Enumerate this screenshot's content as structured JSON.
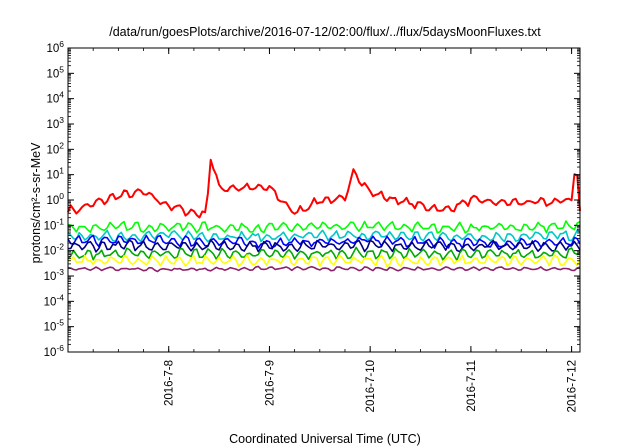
{
  "chart_data": {
    "type": "line",
    "title": "/data/run/goesPlots/archive/2016-07-12/02:00/flux/../flux/5daysMoonFluxes.txt",
    "xlabel": "Coordinated Universal Time (UTC)",
    "ylabel": "protons/cm²-s-sr-MeV",
    "yscale": "log",
    "ylim": [
      1e-06,
      1000000.0
    ],
    "xlim": [
      "2016-07-07 00:00",
      "2016-07-12 02:00"
    ],
    "x_ticks": [
      "2016-7-8",
      "2016-7-9",
      "2016-7-10",
      "2016-7-11",
      "2016-7-12"
    ],
    "y_ticks": [
      "10^-6",
      "10^-5",
      "10^-4",
      "10^-3",
      "10^-2",
      "10^-1",
      "10^0",
      "10^1",
      "10^2",
      "10^3",
      "10^4",
      "10^5",
      "10^6"
    ],
    "grid": false,
    "legend": "none",
    "series": [
      {
        "color": "#ff0000",
        "x": [
          "2016-07-07 02:00",
          "2016-07-07 06:00",
          "2016-07-07 12:00",
          "2016-07-07 18:00",
          "2016-07-08 00:00",
          "2016-07-08 06:00",
          "2016-07-08 09:00",
          "2016-07-08 10:00",
          "2016-07-08 12:00",
          "2016-07-08 18:00",
          "2016-07-09 00:00",
          "2016-07-09 06:00",
          "2016-07-09 12:00",
          "2016-07-09 18:00",
          "2016-07-09 20:00",
          "2016-07-10 00:00",
          "2016-07-10 06:00",
          "2016-07-10 12:00",
          "2016-07-10 18:00",
          "2016-07-11 00:00",
          "2016-07-11 06:00",
          "2016-07-11 12:00",
          "2016-07-11 18:00",
          "2016-07-12 00:00",
          "2016-07-12 01:00",
          "2016-07-12 02:00"
        ],
        "y": [
          0.4,
          0.7,
          1.5,
          2,
          0.6,
          0.3,
          0.3,
          50,
          3,
          3,
          3,
          0.3,
          1,
          1,
          15,
          2,
          1,
          0.6,
          0.4,
          1,
          0.8,
          0.8,
          0.8,
          1,
          60,
          0.3
        ]
      },
      {
        "color": "#00ff00",
        "x": [
          "2016-07-07 00:00",
          "2016-07-08 00:00",
          "2016-07-09 00:00",
          "2016-07-10 00:00",
          "2016-07-11 00:00",
          "2016-07-12 02:00"
        ],
        "y": [
          0.08,
          0.09,
          0.08,
          0.09,
          0.08,
          0.09
        ]
      },
      {
        "color": "#00c8c8",
        "x": [
          "2016-07-07 00:00",
          "2016-07-08 00:00",
          "2016-07-09 00:00",
          "2016-07-10 00:00",
          "2016-07-11 00:00",
          "2016-07-12 02:00"
        ],
        "y": [
          0.035,
          0.04,
          0.035,
          0.04,
          0.035,
          0.04
        ]
      },
      {
        "color": "#0000ff",
        "x": [
          "2016-07-07 00:00",
          "2016-07-08 00:00",
          "2016-07-09 00:00",
          "2016-07-10 00:00",
          "2016-07-11 00:00",
          "2016-07-12 02:00"
        ],
        "y": [
          0.025,
          0.025,
          0.02,
          0.025,
          0.02,
          0.02
        ]
      },
      {
        "color": "#00007f",
        "x": [
          "2016-07-07 00:00",
          "2016-07-08 00:00",
          "2016-07-09 00:00",
          "2016-07-10 00:00",
          "2016-07-11 00:00",
          "2016-07-12 02:00"
        ],
        "y": [
          0.015,
          0.016,
          0.015,
          0.016,
          0.015,
          0.015
        ]
      },
      {
        "color": "#00aa00",
        "x": [
          "2016-07-07 00:00",
          "2016-07-08 00:00",
          "2016-07-09 00:00",
          "2016-07-10 00:00",
          "2016-07-11 00:00",
          "2016-07-12 02:00"
        ],
        "y": [
          0.007,
          0.008,
          0.007,
          0.008,
          0.007,
          0.008
        ]
      },
      {
        "color": "#ffff00",
        "x": [
          "2016-07-07 00:00",
          "2016-07-08 00:00",
          "2016-07-09 00:00",
          "2016-07-10 00:00",
          "2016-07-11 00:00",
          "2016-07-12 02:00"
        ],
        "y": [
          0.004,
          0.004,
          0.004,
          0.004,
          0.004,
          0.004
        ]
      },
      {
        "color": "#8b2268",
        "x": [
          "2016-07-07 00:00",
          "2016-07-08 00:00",
          "2016-07-09 00:00",
          "2016-07-10 00:00",
          "2016-07-11 00:00",
          "2016-07-12 02:00"
        ],
        "y": [
          0.002,
          0.0018,
          0.002,
          0.0019,
          0.002,
          0.0019
        ]
      }
    ]
  }
}
